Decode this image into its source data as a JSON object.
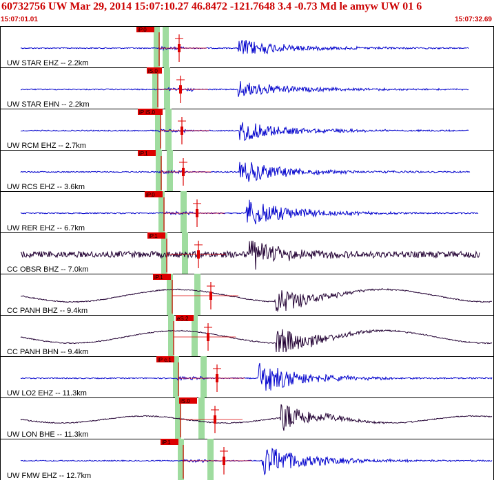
{
  "header": {
    "title": "60732756 UW Mar 29, 2014 15:07:10.27   46.8472 -121.7648  3.4 -0.73 Md le amyw UW 01    6",
    "time_start": "15:07:01.01",
    "time_end": "15:07:32.69"
  },
  "colors": {
    "title": "#cc0000",
    "trace_short_period": "#0000cc",
    "trace_broadband": "#220033",
    "pick": "#dd0000",
    "window": "#9fdc9f"
  },
  "chart_data": {
    "type": "line",
    "x_range": [
      "15:07:01.01",
      "15:07:32.69"
    ],
    "channels": [
      {
        "label": "UW STAR EHZ -- 2.2km",
        "pick": "iP.0"
      },
      {
        "label": "UW STAR EHN -- 2.2km",
        "pick": "iS.0"
      },
      {
        "label": "UW RCM EHZ -- 2.7km",
        "pick": "iP iS.0"
      },
      {
        "label": "UW RCS EHZ -- 3.6km",
        "pick": "iP.1"
      },
      {
        "label": "UW RER EHZ -- 6.7km",
        "pick": "iP.0"
      },
      {
        "label": "CC OBSR BHZ -- 7.0km",
        "pick": "iP.1"
      },
      {
        "label": "CC PANH BHZ -- 9.4km",
        "pick": "iP.1"
      },
      {
        "label": "CC PANH BHN -- 9.4km",
        "pick": "eS.2"
      },
      {
        "label": "UW LO2 EHZ -- 11.3km",
        "pick": "iP c.1"
      },
      {
        "label": "UW LON BHE -- 11.3km",
        "pick": "iS.0"
      },
      {
        "label": "UW FMW EHZ -- 12.7km",
        "pick": "iP.1"
      }
    ]
  }
}
